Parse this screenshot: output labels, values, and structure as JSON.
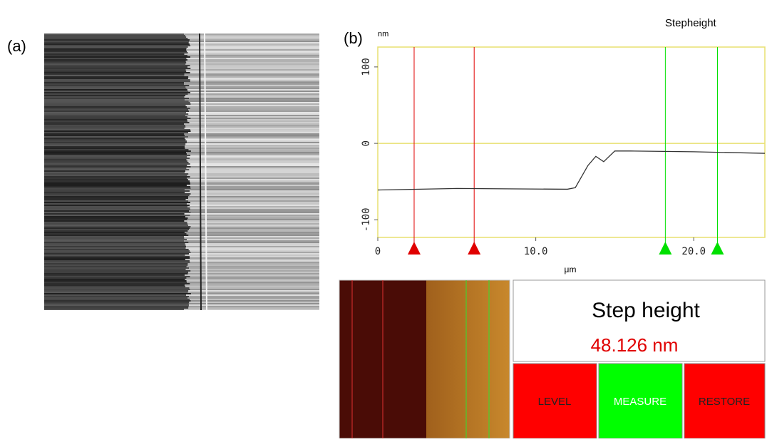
{
  "label_a": "(a)",
  "label_b": "(b)",
  "window_title": "Stepheight",
  "chart_data": {
    "type": "line",
    "y_label": "nm",
    "x_label": "μm",
    "x": [
      0,
      5,
      12,
      12.5,
      13.3,
      13.8,
      14.3,
      15,
      16,
      20,
      24.5
    ],
    "values": [
      -61,
      -59,
      -60,
      -58,
      -29,
      -17,
      -24,
      -10,
      -10,
      -11,
      -13
    ],
    "color": "#333333",
    "xlim": [
      0,
      24.5
    ],
    "ylim": [
      -123,
      126
    ],
    "xticks": [
      0,
      {
        "value": 10,
        "label": "10.0"
      },
      {
        "value": 20,
        "label": "20.0"
      }
    ],
    "yticks": [
      -100,
      0,
      100
    ],
    "reference_line": 0,
    "cursors": [
      {
        "x": 2.3,
        "color": "#e00000"
      },
      {
        "x": 6.1,
        "color": "#e00000"
      },
      {
        "x": 18.2,
        "color": "#00e000"
      },
      {
        "x": 21.5,
        "color": "#00e000"
      }
    ]
  },
  "result": {
    "title": "Step height",
    "value": "48.126 nm"
  },
  "buttons": [
    "LEVEL",
    "MEASURE",
    "RESTORE"
  ]
}
